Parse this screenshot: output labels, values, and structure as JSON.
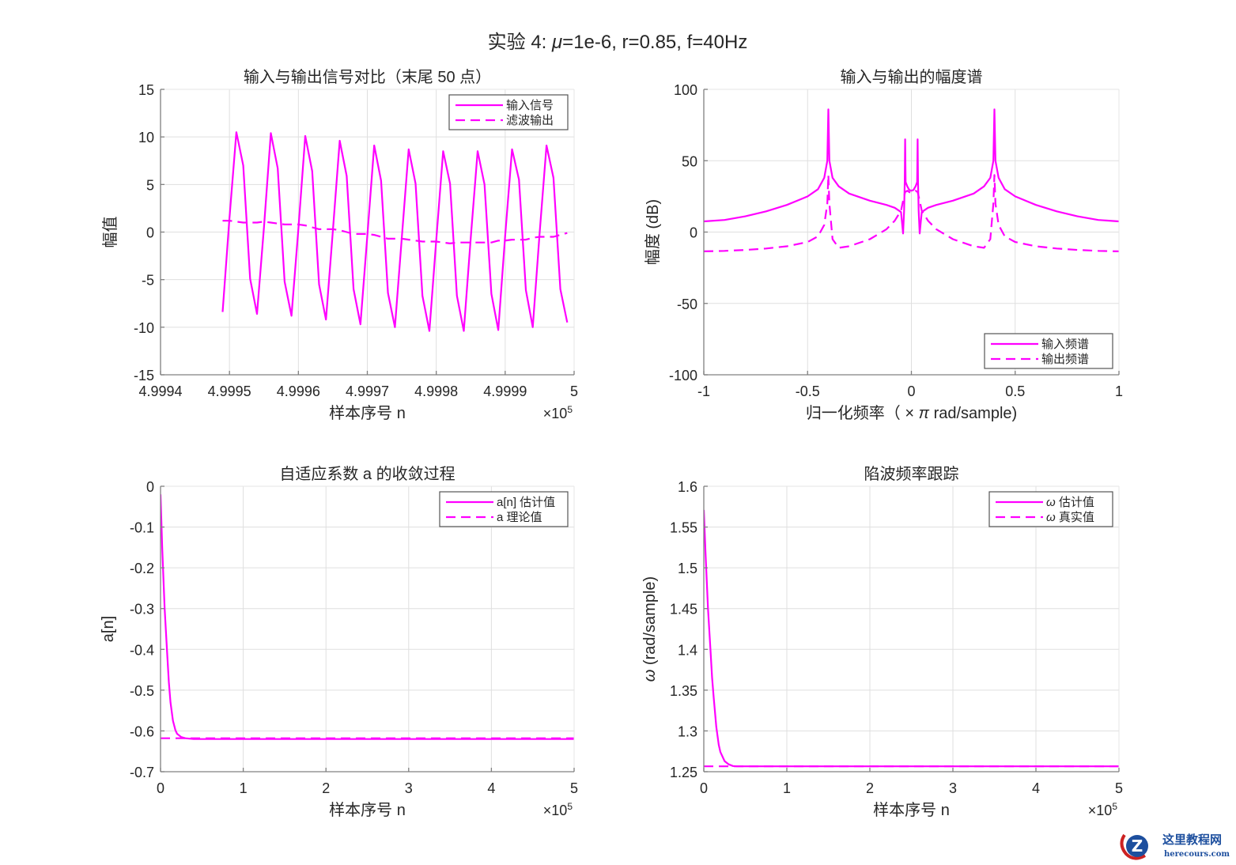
{
  "figure": {
    "suptitle_prefix": "实验  4:  ",
    "suptitle_mu": "μ",
    "suptitle_rest": "=1e-6,  r=0.85,  f=40Hz",
    "line_color": "#ff00ff"
  },
  "chart_data": [
    {
      "id": "io-compare",
      "type": "line",
      "title": "输入与输出信号对比（末尾 50 点）",
      "xlabel": "样本序号 n",
      "ylabel": "幅值",
      "x_exponent_label": "×10",
      "x_exponent": "5",
      "xlim": [
        4.9994,
        5.0
      ],
      "ylim": [
        -15,
        15
      ],
      "xticks": [
        "4.9994",
        "4.9995",
        "4.9996",
        "4.9997",
        "4.9998",
        "4.9999",
        "5"
      ],
      "yticks": [
        "15",
        "10",
        "5",
        "0",
        "-5",
        "-10",
        "-15"
      ],
      "grid": true,
      "legend": {
        "position": "northeast",
        "entries": [
          "输入信号",
          "滤波输出"
        ]
      },
      "x_start": 499949,
      "series": [
        {
          "name": "输入信号",
          "style": "solid",
          "values": [
            -8.4,
            1.5,
            10.5,
            7.0,
            -4.9,
            -8.6,
            0.5,
            10.4,
            6.7,
            -5.2,
            -8.8,
            0.3,
            10.1,
            6.4,
            -5.5,
            -9.2,
            0.1,
            9.6,
            5.9,
            -6.0,
            -9.7,
            -0.4,
            9.1,
            5.4,
            -6.4,
            -10.0,
            -0.6,
            8.7,
            5.1,
            -6.7,
            -10.4,
            -0.8,
            8.5,
            5.1,
            -6.7,
            -10.4,
            -0.6,
            8.5,
            5.0,
            -6.5,
            -10.3,
            -0.4,
            8.7,
            5.5,
            -6.1,
            -10.0,
            -0.1,
            9.1,
            5.7,
            -6.0,
            -9.5
          ]
        },
        {
          "name": "滤波输出",
          "style": "dashed",
          "values": [
            1.2,
            1.2,
            1.1,
            1.0,
            1.0,
            1.0,
            1.1,
            1.0,
            0.9,
            0.8,
            0.8,
            0.8,
            0.7,
            0.5,
            0.3,
            0.3,
            0.3,
            0.2,
            0.0,
            -0.2,
            -0.2,
            -0.2,
            -0.3,
            -0.5,
            -0.7,
            -0.7,
            -0.7,
            -0.8,
            -0.9,
            -1.0,
            -1.0,
            -1.0,
            -1.1,
            -1.2,
            -1.1,
            -1.1,
            -1.1,
            -1.1,
            -1.1,
            -1.1,
            -0.9,
            -0.9,
            -0.8,
            -0.8,
            -0.8,
            -0.6,
            -0.5,
            -0.5,
            -0.5,
            -0.3,
            -0.1
          ]
        }
      ]
    },
    {
      "id": "spectrum",
      "type": "line",
      "title": "输入与输出的幅度谱",
      "xlabel": "归一化频率（ × π  rad/sample)",
      "ylabel": "幅度 (dB)",
      "xlim": [
        -1,
        1
      ],
      "ylim": [
        -100,
        100
      ],
      "xticks": [
        "-1",
        "-0.5",
        "0",
        "0.5",
        "1"
      ],
      "yticks": [
        "100",
        "50",
        "0",
        "-50",
        "-100"
      ],
      "grid": true,
      "legend": {
        "position": "southeast",
        "entries": [
          "输入频谱",
          "输出频谱"
        ]
      },
      "series": [
        {
          "name": "输入频谱",
          "style": "solid",
          "x": [
            -1,
            -0.9,
            -0.8,
            -0.7,
            -0.6,
            -0.5,
            -0.45,
            -0.42,
            -0.405,
            -0.4,
            -0.395,
            -0.38,
            -0.35,
            -0.3,
            -0.2,
            -0.12,
            -0.08,
            -0.05,
            -0.04,
            -0.035,
            -0.032,
            -0.03,
            -0.028,
            -0.02,
            -0.01,
            0,
            0.01,
            0.02,
            0.028,
            0.03,
            0.032,
            0.035,
            0.04,
            0.05,
            0.08,
            0.12,
            0.2,
            0.3,
            0.35,
            0.38,
            0.395,
            0.4,
            0.405,
            0.42,
            0.45,
            0.5,
            0.6,
            0.7,
            0.8,
            0.9,
            1
          ],
          "values": [
            7.5,
            8.5,
            11,
            14.5,
            19,
            25,
            30,
            38,
            50,
            86,
            50,
            38,
            32,
            27,
            22,
            19,
            17,
            14,
            -1,
            15,
            35,
            65,
            35,
            32,
            29.5,
            29,
            29.5,
            32,
            35,
            65,
            35,
            15,
            -1,
            14,
            17,
            19,
            22,
            27,
            32,
            38,
            50,
            86,
            50,
            38,
            30,
            25,
            19,
            14.5,
            11,
            8.5,
            7.5
          ]
        },
        {
          "name": "输出频谱",
          "style": "dashed",
          "x": [
            -1,
            -0.9,
            -0.8,
            -0.7,
            -0.6,
            -0.5,
            -0.45,
            -0.42,
            -0.405,
            -0.4,
            -0.395,
            -0.38,
            -0.35,
            -0.3,
            -0.2,
            -0.12,
            -0.08,
            -0.05,
            -0.04,
            -0.035,
            -0.03,
            -0.02,
            -0.01,
            0,
            0.01,
            0.02,
            0.03,
            0.035,
            0.04,
            0.05,
            0.08,
            0.12,
            0.2,
            0.3,
            0.35,
            0.38,
            0.395,
            0.4,
            0.405,
            0.42,
            0.45,
            0.5,
            0.6,
            0.7,
            0.8,
            0.9,
            1
          ],
          "values": [
            -13.5,
            -13.2,
            -12.5,
            -11.5,
            -10,
            -7,
            -3,
            5,
            20,
            40,
            20,
            -5,
            -11,
            -10,
            -5,
            2,
            8,
            15,
            22,
            25,
            28,
            29,
            28,
            27.5,
            28,
            29,
            28,
            25,
            22,
            15,
            8,
            2,
            -5,
            -10,
            -11,
            -5,
            20,
            40,
            20,
            5,
            -3,
            -7,
            -10,
            -11.5,
            -12.5,
            -13.2,
            -13.5
          ]
        }
      ]
    },
    {
      "id": "coef-convergence",
      "type": "line",
      "title": "自适应系数 a 的收敛过程",
      "xlabel": "样本序号 n",
      "ylabel": "a[n]",
      "x_exponent_label": "×10",
      "x_exponent": "5",
      "xlim": [
        0,
        5
      ],
      "ylim": [
        -0.7,
        0
      ],
      "xticks": [
        "0",
        "1",
        "2",
        "3",
        "4",
        "5"
      ],
      "yticks": [
        "0",
        "-0.1",
        "-0.2",
        "-0.3",
        "-0.4",
        "-0.5",
        "-0.6",
        "-0.7"
      ],
      "grid": true,
      "legend": {
        "position": "northeast",
        "entries": [
          "a[n] 估计值",
          "a 理论值"
        ]
      },
      "series": [
        {
          "name": "a[n] 估计值",
          "style": "solid",
          "x": [
            0,
            0.02,
            0.05,
            0.08,
            0.1,
            0.12,
            0.15,
            0.18,
            0.2,
            0.25,
            0.3,
            0.35,
            0.4,
            0.5,
            1,
            2,
            3,
            4,
            5
          ],
          "values": [
            -0.02,
            -0.15,
            -0.3,
            -0.41,
            -0.48,
            -0.53,
            -0.575,
            -0.598,
            -0.607,
            -0.615,
            -0.618,
            -0.619,
            -0.62,
            -0.62,
            -0.62,
            -0.62,
            -0.62,
            -0.62,
            -0.62
          ]
        },
        {
          "name": "a 理论值",
          "style": "dashed",
          "x": [
            0,
            5
          ],
          "values": [
            -0.618,
            -0.618
          ]
        }
      ]
    },
    {
      "id": "freq-tracking",
      "type": "line",
      "title": "陷波频率跟踪",
      "xlabel": "样本序号 n",
      "ylabel_symbol": "ω",
      "ylabel": " (rad/sample)",
      "x_exponent_label": "×10",
      "x_exponent": "5",
      "xlim": [
        0,
        5
      ],
      "ylim": [
        1.25,
        1.6
      ],
      "xticks": [
        "0",
        "1",
        "2",
        "3",
        "4",
        "5"
      ],
      "yticks": [
        "1.6",
        "1.55",
        "1.5",
        "1.45",
        "1.4",
        "1.35",
        "1.3",
        "1.25"
      ],
      "grid": true,
      "legend": {
        "position": "northeast",
        "entries": [
          "ω  估计值",
          "ω  真实值"
        ]
      },
      "legend_symbol": "ω",
      "legend_texts": [
        "估计值",
        "真实值"
      ],
      "series": [
        {
          "name": "ω 估计值",
          "style": "solid",
          "x": [
            0,
            0.02,
            0.05,
            0.08,
            0.1,
            0.12,
            0.15,
            0.18,
            0.2,
            0.25,
            0.3,
            0.35,
            0.4,
            0.5,
            1,
            2,
            3,
            4,
            5
          ],
          "values": [
            1.571,
            1.52,
            1.45,
            1.4,
            1.365,
            1.34,
            1.305,
            1.283,
            1.274,
            1.263,
            1.259,
            1.257,
            1.2566,
            1.2566,
            1.2566,
            1.2566,
            1.2566,
            1.2566,
            1.2566
          ]
        },
        {
          "name": "ω 真实值",
          "style": "dashed",
          "x": [
            0,
            5
          ],
          "values": [
            1.2566,
            1.2566
          ]
        }
      ]
    }
  ],
  "watermark": {
    "cn": "这里教程网",
    "en": "herecours.com"
  }
}
